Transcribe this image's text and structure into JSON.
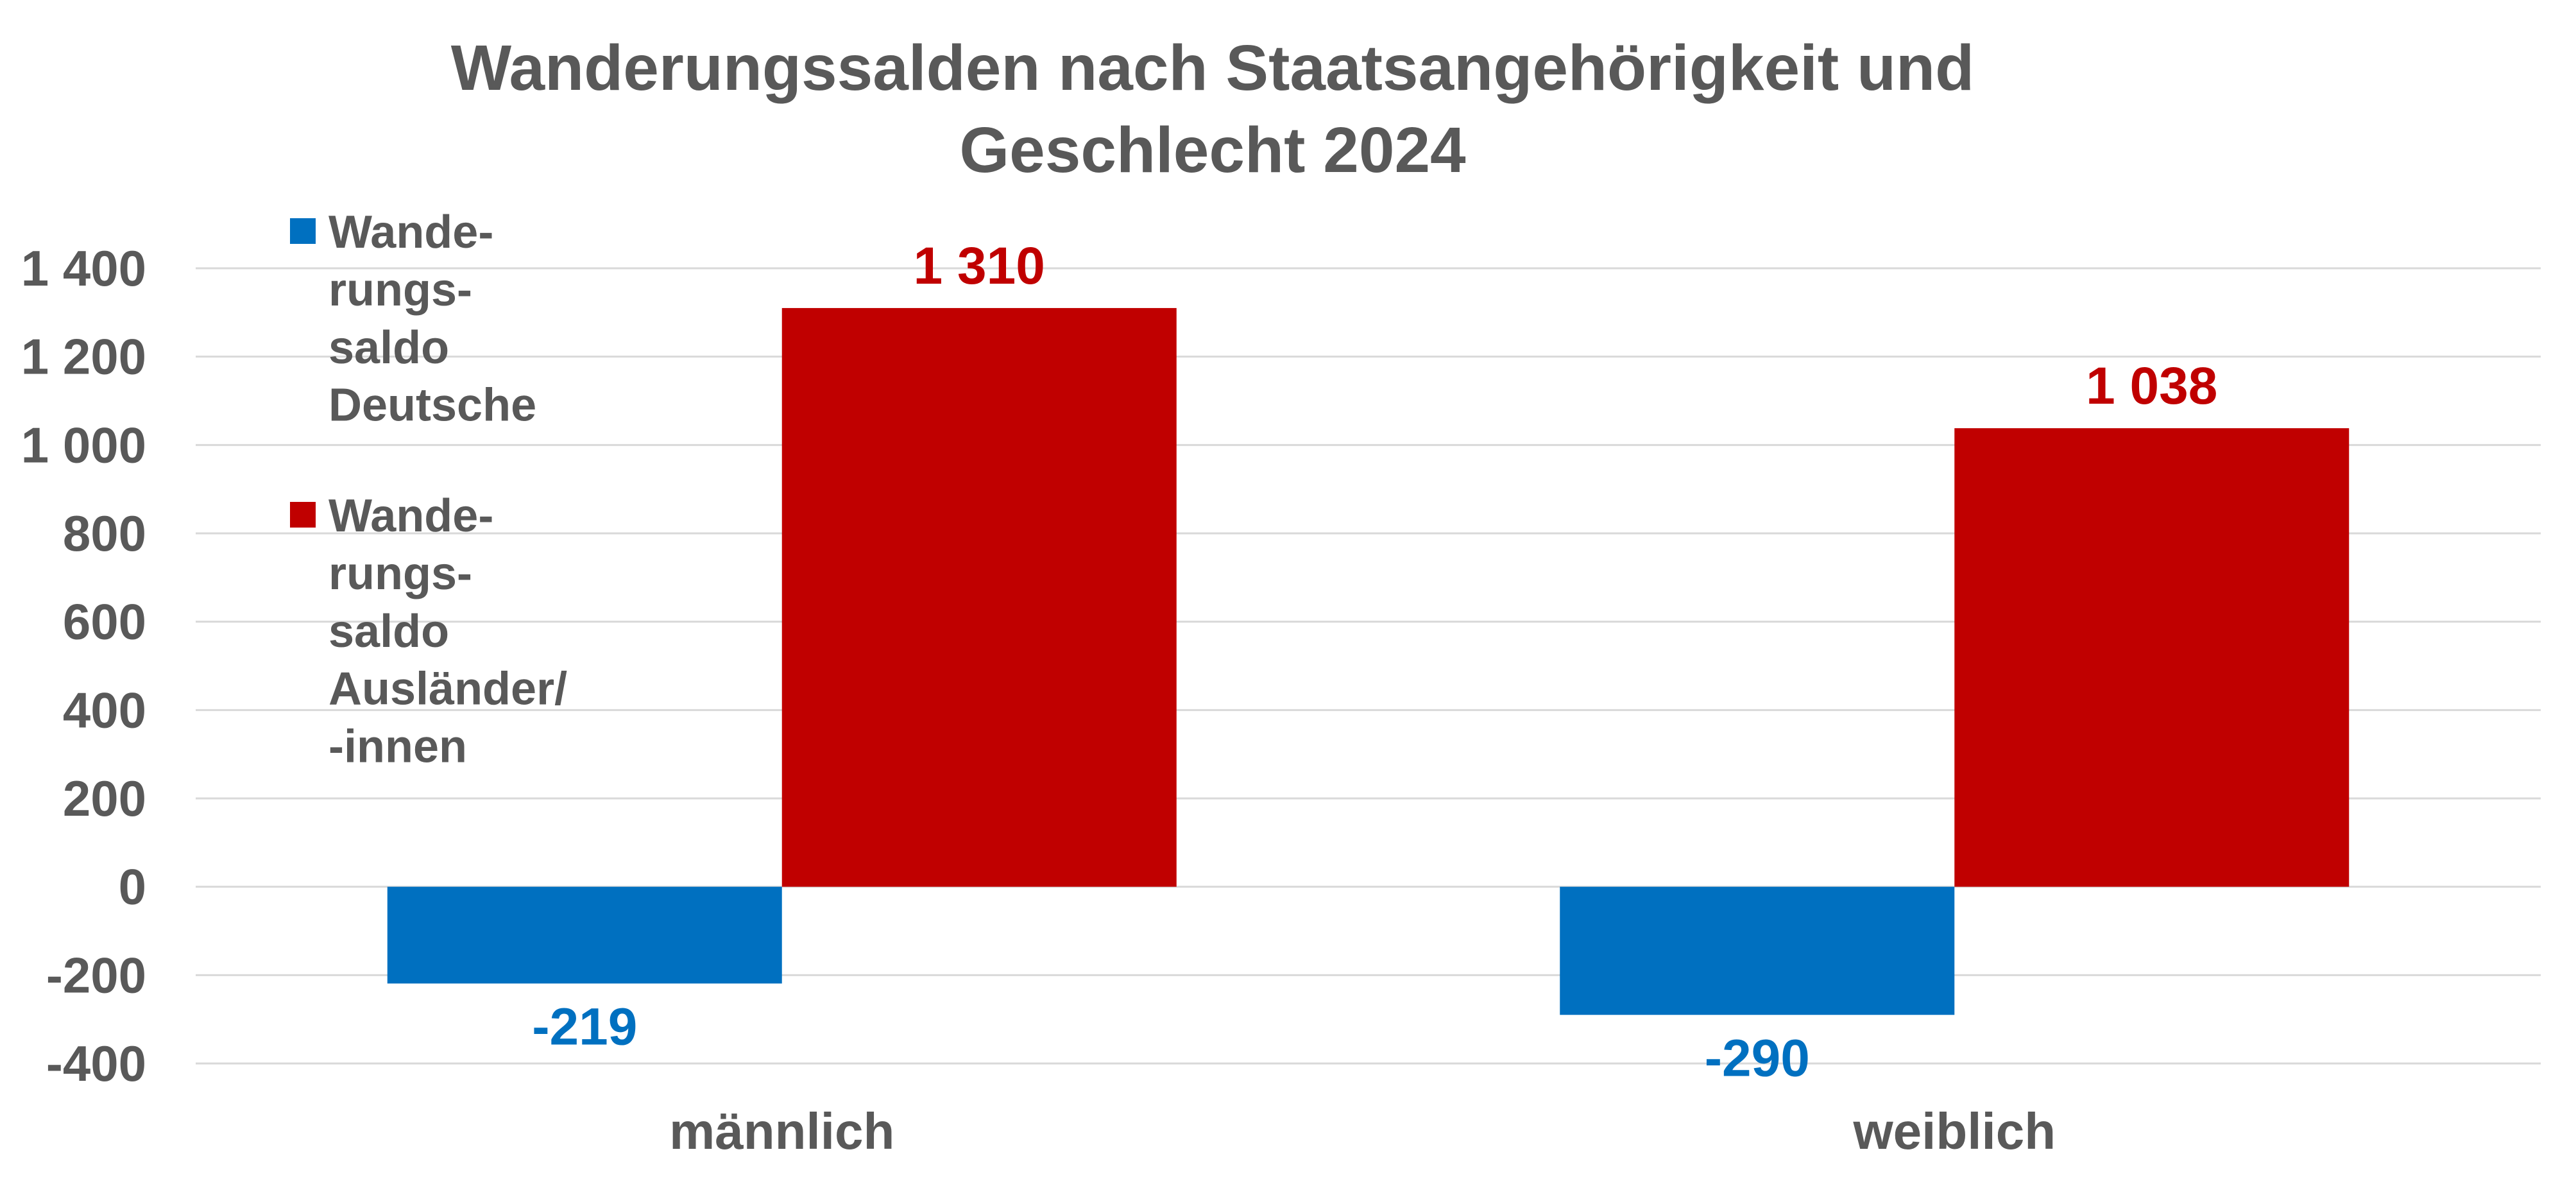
{
  "chart_data": {
    "type": "bar",
    "title_lines": [
      "Wanderungssalden nach Staatsangehörigkeit und",
      "Geschlecht 2024"
    ],
    "categories": [
      "männlich",
      "weiblich"
    ],
    "series": [
      {
        "name_lines": [
          "Wande-",
          "rungs-",
          "saldo",
          "Deutsche"
        ],
        "values": [
          -219,
          -290
        ],
        "value_labels": [
          "-219",
          "-290"
        ],
        "color": "#0070c0"
      },
      {
        "name_lines": [
          "Wande-",
          "rungs-",
          "saldo",
          "Ausländer/",
          "-innen"
        ],
        "values": [
          1310,
          1038
        ],
        "value_labels": [
          "1 310",
          "1 038"
        ],
        "color": "#c00000"
      }
    ],
    "ylim": [
      -400,
      1400
    ],
    "yticks": [
      -400,
      -200,
      0,
      200,
      400,
      600,
      800,
      1000,
      1200,
      1400
    ],
    "ytick_labels": [
      "-400",
      "-200",
      "0",
      "200",
      "400",
      "600",
      "800",
      "1 000",
      "1 200",
      "1 400"
    ],
    "grid": true,
    "legend_position": "top-left inside plot"
  }
}
